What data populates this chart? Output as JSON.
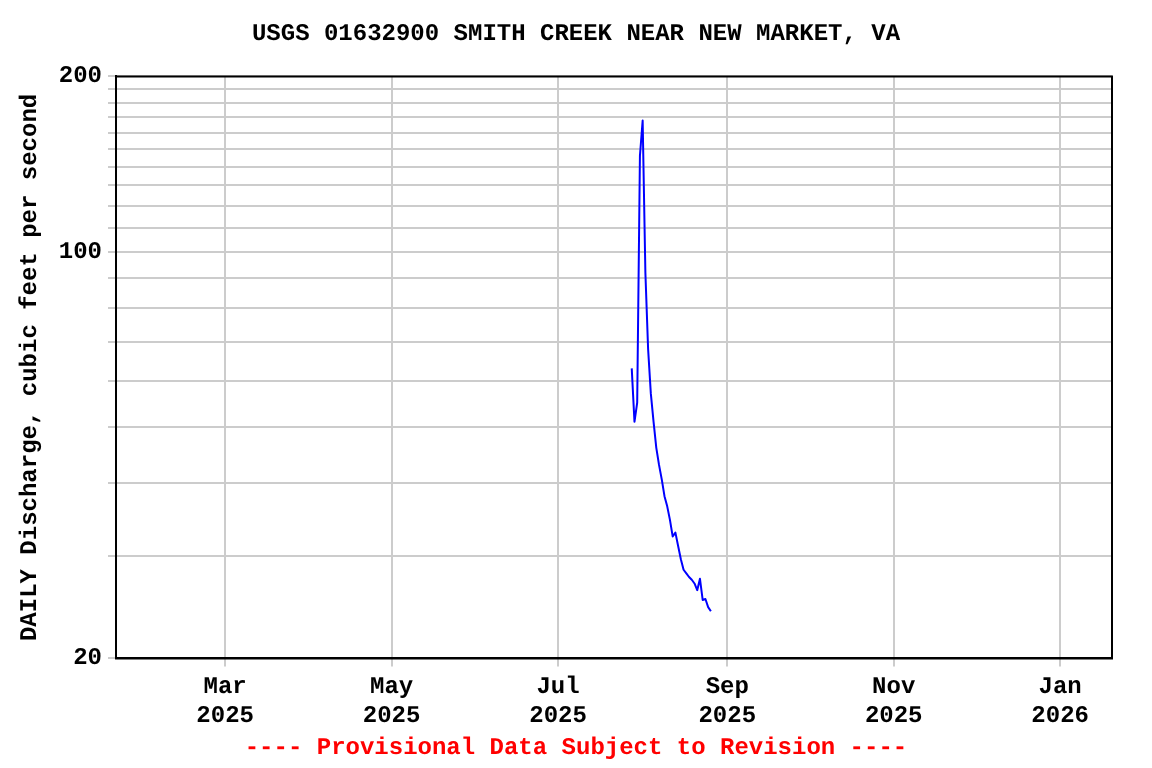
{
  "chart_data": {
    "type": "line",
    "title": "USGS 01632900 SMITH CREEK NEAR NEW MARKET, VA",
    "ylabel": "DAILY Discharge, cubic feet per second",
    "annotations": [
      "---- Provisional Data Subject to Revision ----"
    ],
    "x": [
      "2025-07-28",
      "2025-07-29",
      "2025-07-30",
      "2025-07-31",
      "2025-08-01",
      "2025-08-02",
      "2025-08-03",
      "2025-08-04",
      "2025-08-05",
      "2025-08-06",
      "2025-08-07",
      "2025-08-08",
      "2025-08-09",
      "2025-08-10",
      "2025-08-11",
      "2025-08-12",
      "2025-08-13",
      "2025-08-14",
      "2025-08-15",
      "2025-08-16",
      "2025-08-17",
      "2025-08-18",
      "2025-08-19",
      "2025-08-20",
      "2025-08-21",
      "2025-08-22",
      "2025-08-23",
      "2025-08-24",
      "2025-08-25",
      "2025-08-26"
    ],
    "series": [
      {
        "color": "#0000ff",
        "values": [
          63,
          51,
          55,
          146,
          168,
          92,
          68,
          57,
          51,
          46,
          43,
          40.6,
          38,
          36.5,
          34.6,
          32.4,
          32.9,
          31.2,
          29.6,
          28.4,
          28,
          27.6,
          27.3,
          26.9,
          26.2,
          27.4,
          25.2,
          25.3,
          24.5,
          24.1
        ]
      }
    ],
    "log": true,
    "ylim": [
      20,
      200
    ],
    "yticks": [
      20,
      {
        "value": 30,
        "label": null
      },
      {
        "value": 40,
        "label": null
      },
      {
        "value": 50,
        "label": null
      },
      {
        "value": 60,
        "label": null
      },
      {
        "value": 70,
        "label": null
      },
      {
        "value": 80,
        "label": null
      },
      {
        "value": 90,
        "label": null
      },
      100,
      {
        "value": 110,
        "label": null
      },
      {
        "value": 120,
        "label": null
      },
      {
        "value": 130,
        "label": null
      },
      {
        "value": 140,
        "label": null
      },
      {
        "value": 150,
        "label": null
      },
      {
        "value": 160,
        "label": null
      },
      {
        "value": 170,
        "label": null
      },
      {
        "value": 180,
        "label": null
      },
      {
        "value": 190,
        "label": null
      },
      200
    ],
    "xlim": [
      "2025-01-20",
      "2026-01-20"
    ],
    "xticks": [
      {
        "value": "2025-03-01",
        "label": "Mar 2025"
      },
      {
        "value": "2025-05-01",
        "label": "May 2025"
      },
      {
        "value": "2025-07-01",
        "label": "Jul 2025"
      },
      {
        "value": "2025-09-01",
        "label": "Sep 2025"
      },
      {
        "value": "2025-11-01",
        "label": "Nov 2025"
      },
      {
        "value": "2026-01-01",
        "label": "Jan 2026"
      }
    ],
    "grid": true,
    "legend": false,
    "marker": "none",
    "line_style": "solid"
  }
}
